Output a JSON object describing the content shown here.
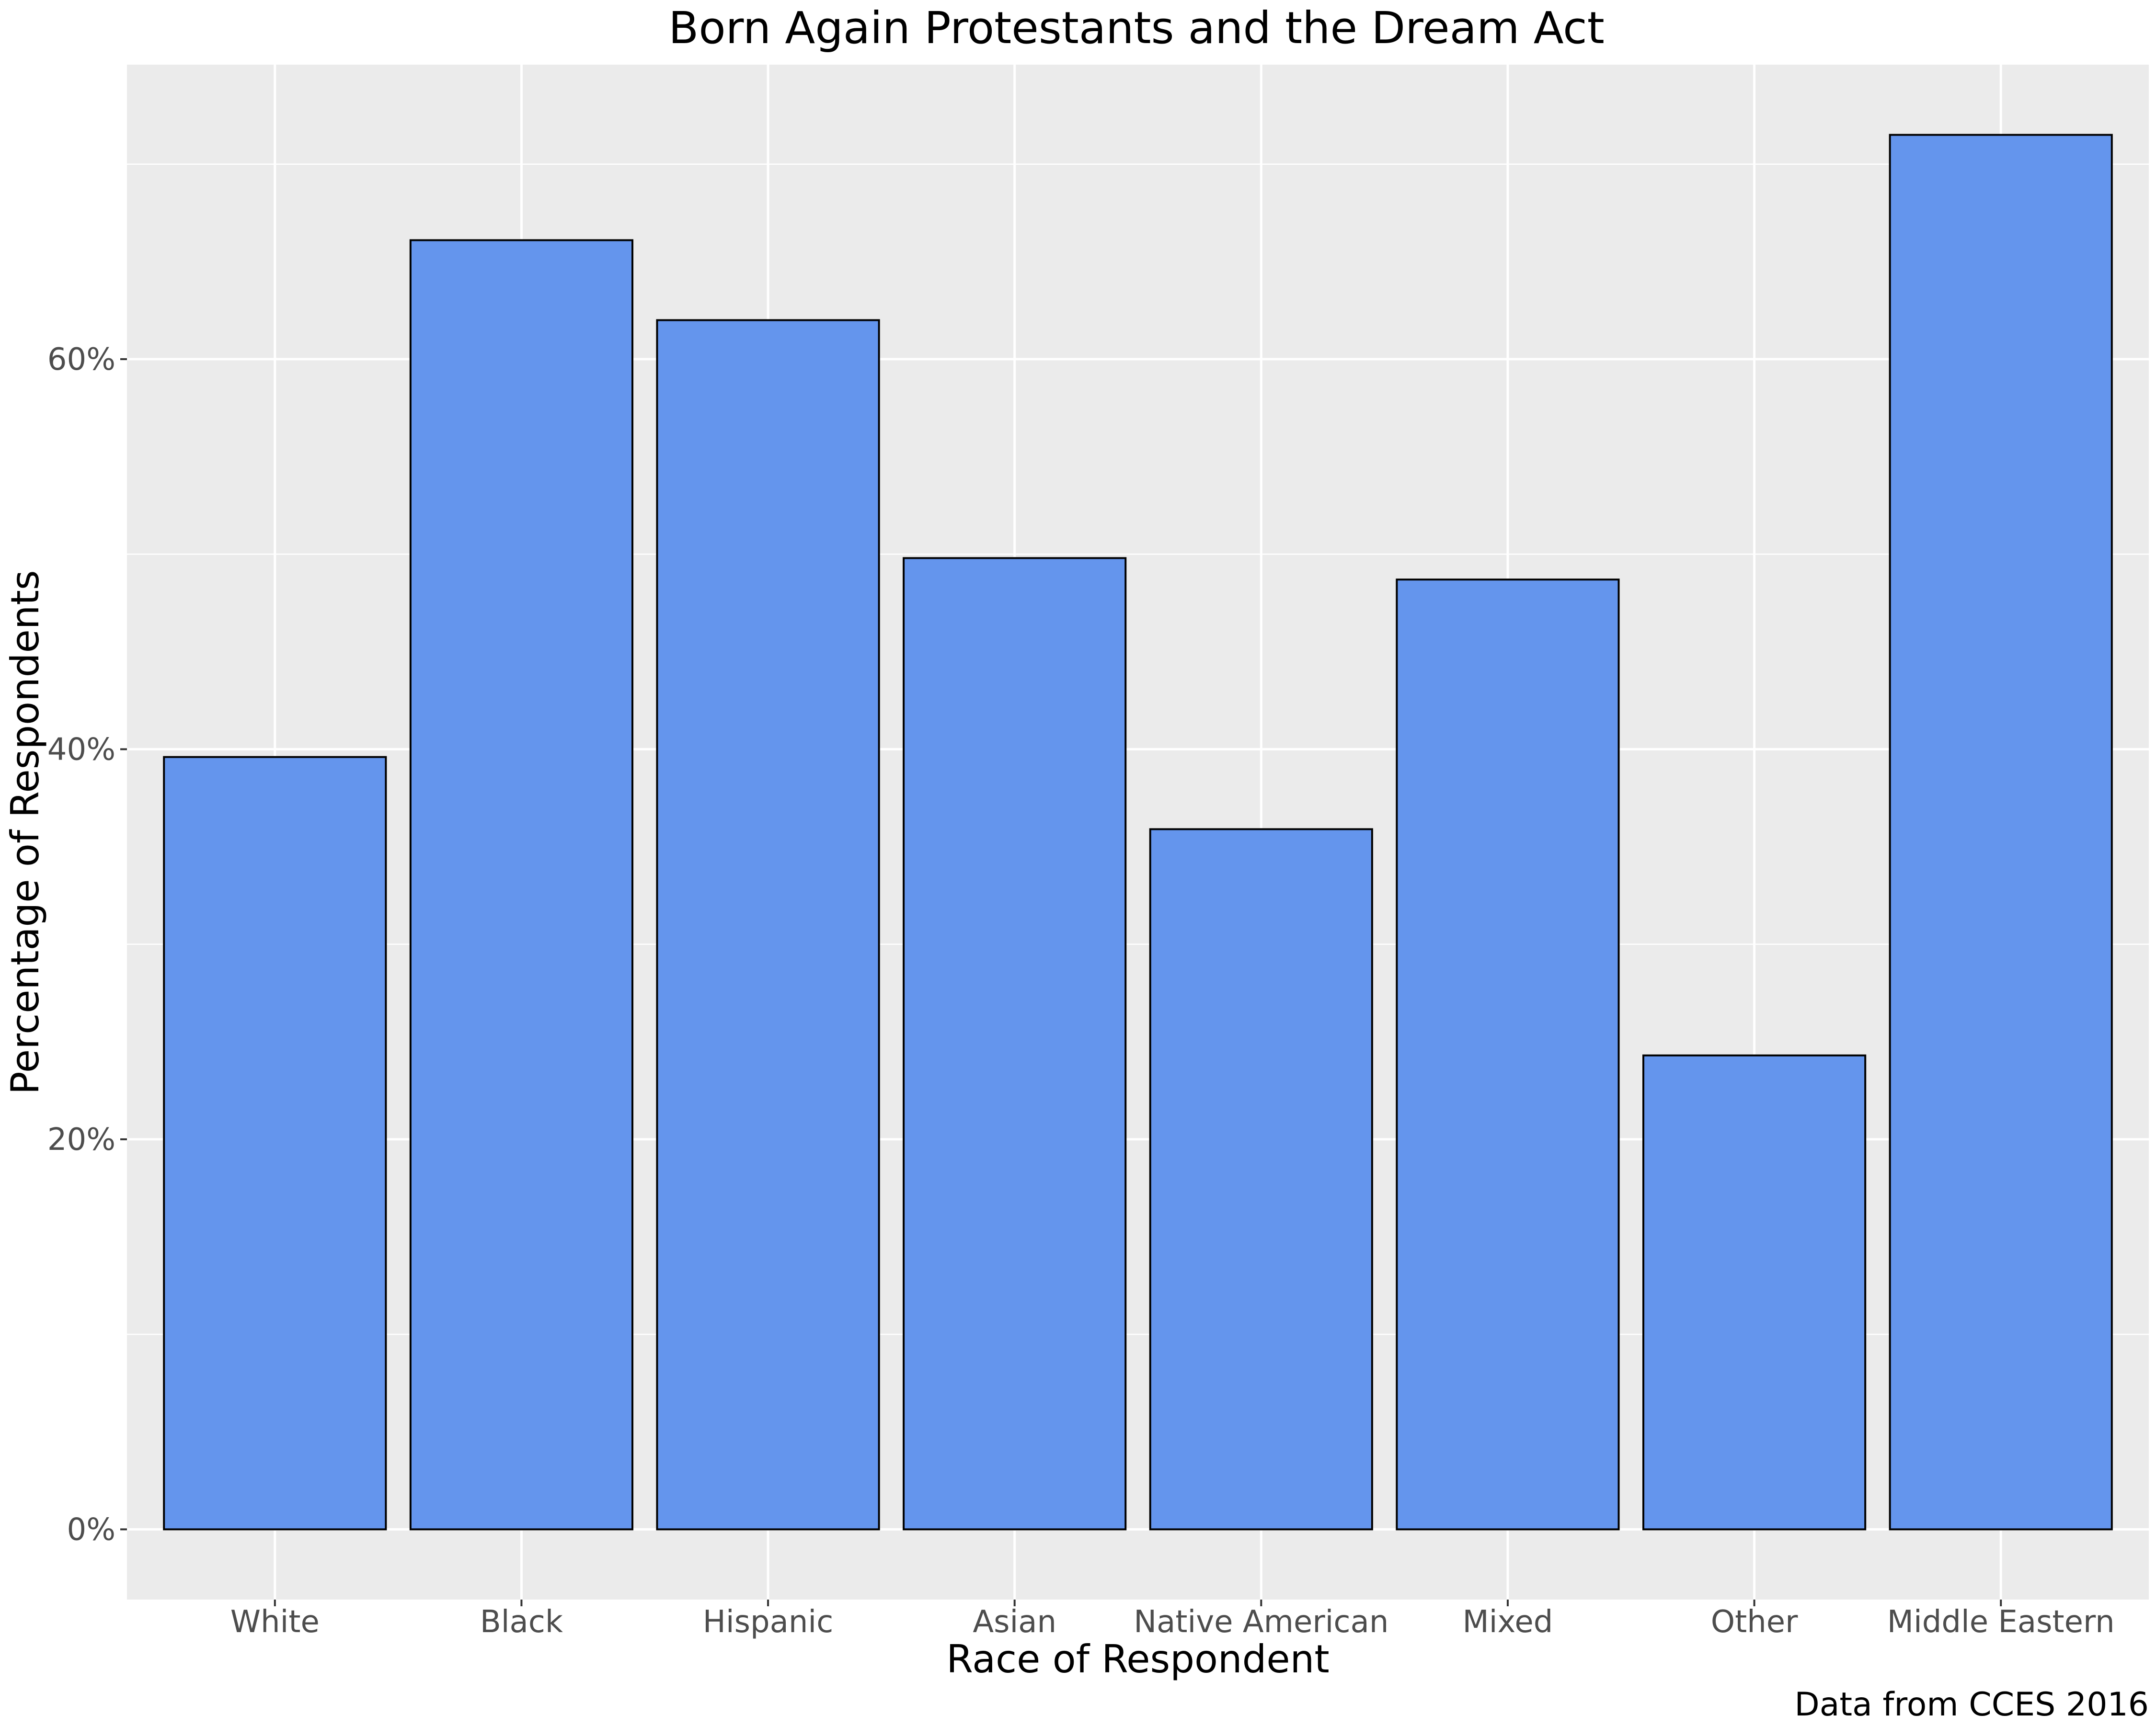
{
  "chart_data": {
    "type": "bar",
    "title": "Born Again Protestants and the Dream Act",
    "xlabel": "Race of Respondent",
    "ylabel": "Percentage of Respondents",
    "caption": "Data from CCES 2016",
    "categories": [
      "White",
      "Black",
      "Hispanic",
      "Asian",
      "Native American",
      "Mixed",
      "Other",
      "Middle Eastern"
    ],
    "values": [
      0.396,
      0.661,
      0.62,
      0.498,
      0.359,
      0.487,
      0.243,
      0.715
    ],
    "ylim": [
      -0.036,
      0.751
    ],
    "y_ticks": [
      0,
      0.2,
      0.4,
      0.6
    ],
    "y_tick_labels": [
      "0%",
      "20%",
      "40%",
      "60%"
    ],
    "grid": true,
    "legend": "none",
    "colors": {
      "bar_fill": "#6495ED",
      "bar_stroke": "#000000",
      "panel_background": "#EBEBEB",
      "gridline": "#FFFFFF"
    }
  }
}
